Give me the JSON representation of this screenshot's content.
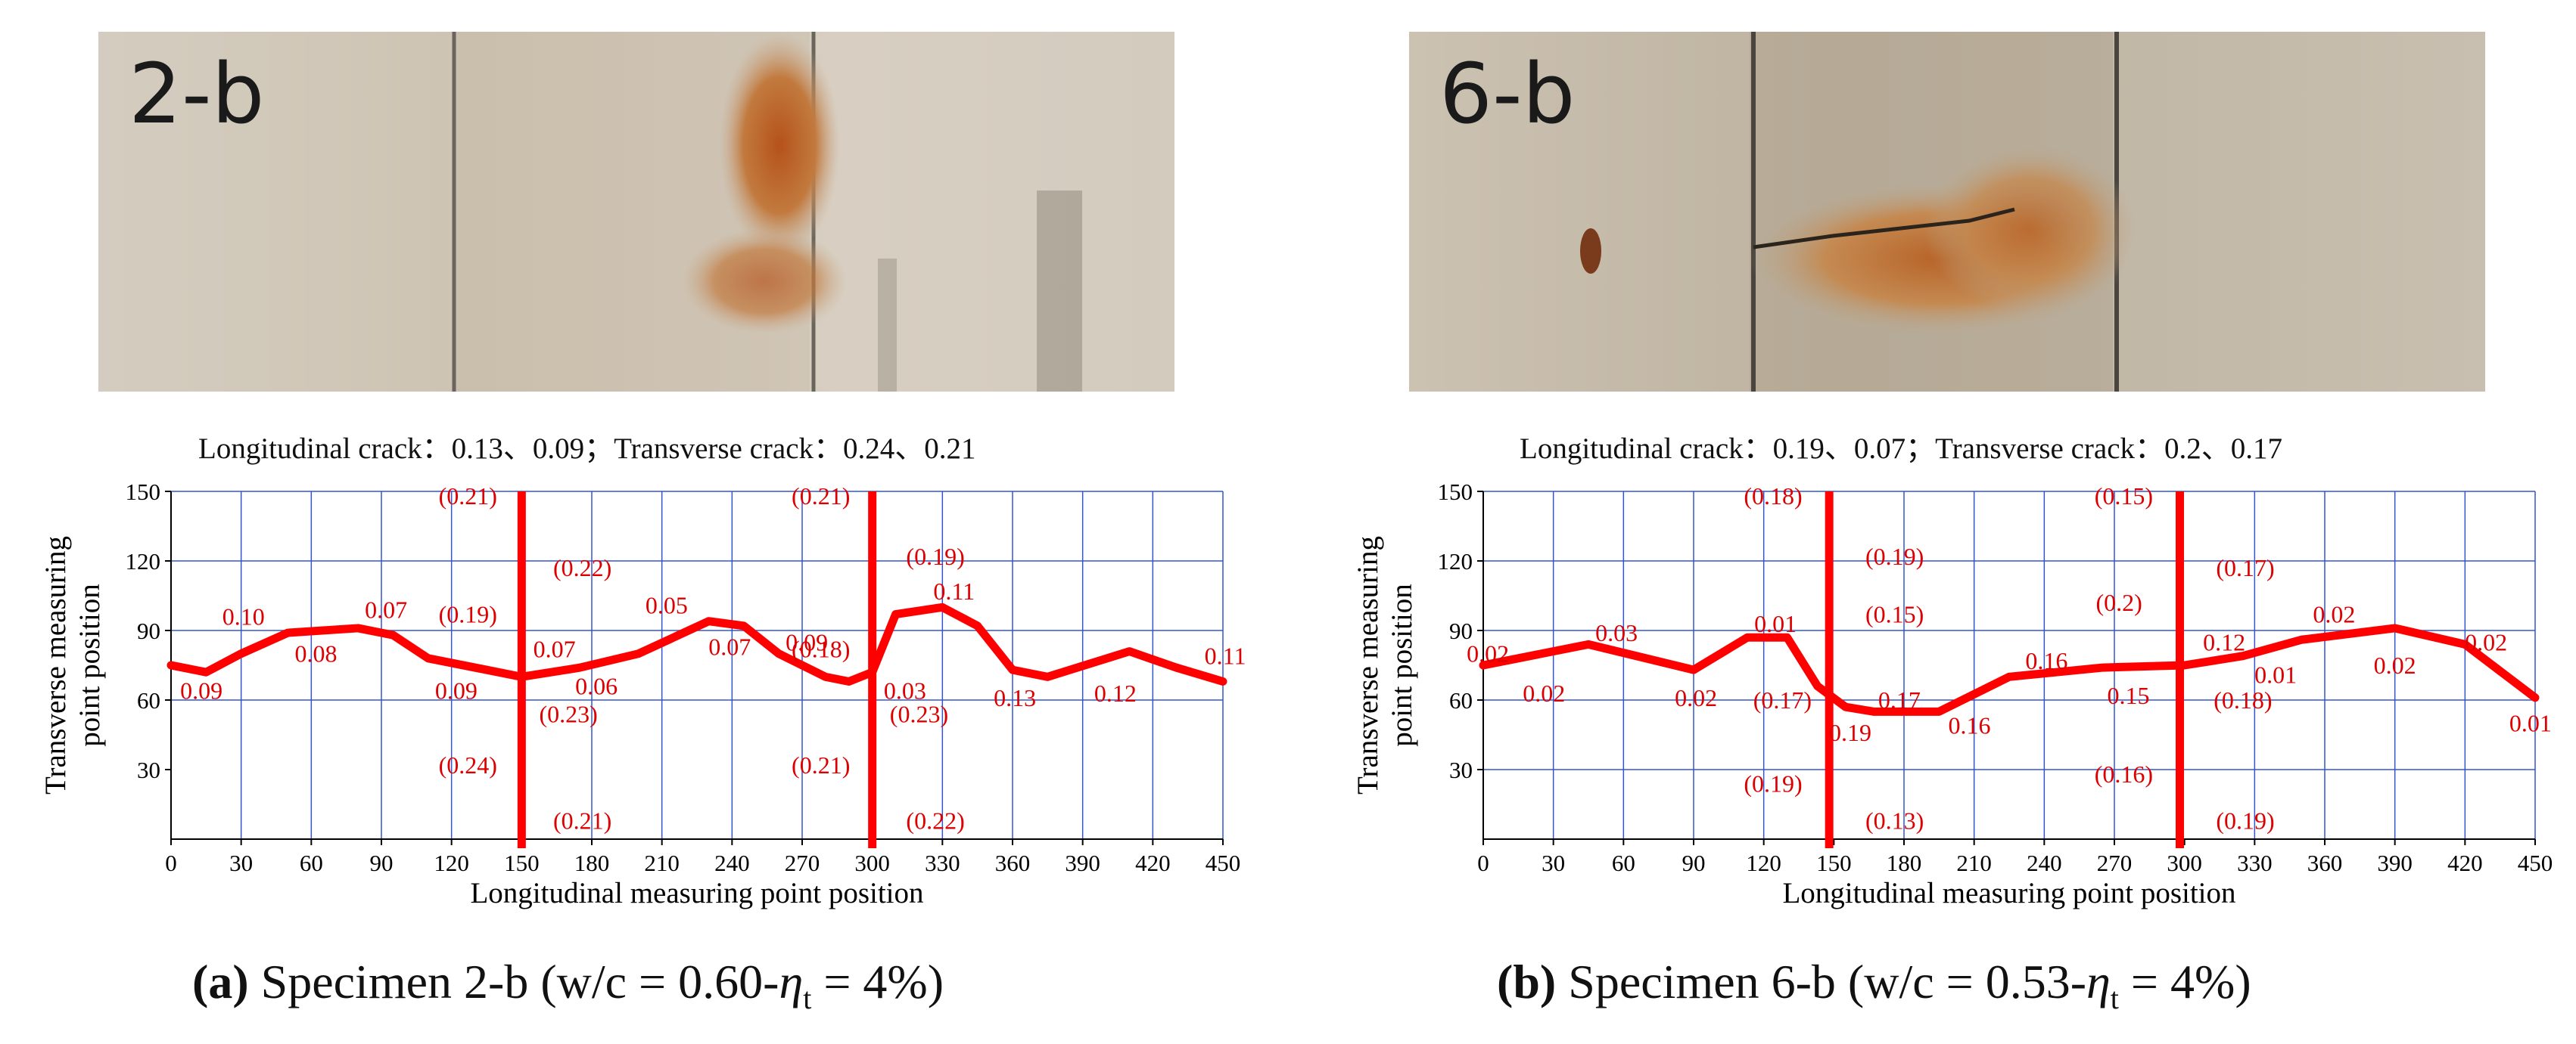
{
  "colors": {
    "series": "#ff0000",
    "grid": "#3355cc",
    "axis": "#000000",
    "label": "#dd0000"
  },
  "chart_data": [
    {
      "type": "line",
      "panel_letter": "a",
      "photo_label": "2-b",
      "crack_summary": "Longitudinal crack：0.13、0.09；Transverse crack：0.24、0.21",
      "caption_letter": "(a)",
      "caption_text": " Specimen 2-b (w/c = 0.60-",
      "caption_eta": "η",
      "caption_sub": "t",
      "caption_tail": " = 4%)",
      "xlabel": "Longitudinal measuring point position",
      "ylabel_line1": "Transverse measuring",
      "ylabel_line2": "point position",
      "xlim": [
        0,
        450
      ],
      "ylim": [
        0,
        150
      ],
      "xticks": [
        "0",
        "30",
        "60",
        "90",
        "120",
        "150",
        "180",
        "210",
        "240",
        "270",
        "300",
        "330",
        "360",
        "390",
        "420",
        "450"
      ],
      "yticks": [
        "30",
        "60",
        "90",
        "120",
        "150"
      ],
      "vertical_grid": [
        30,
        60,
        90,
        120,
        180,
        210,
        240,
        270,
        330,
        360,
        390,
        420,
        450
      ],
      "horizontal_grid": [
        60,
        90,
        120,
        150
      ],
      "crack_lines_x": [
        150,
        300
      ],
      "longitudinal_crack": {
        "x": [
          0,
          15,
          30,
          50,
          80,
          95,
          110,
          130,
          150,
          175,
          200,
          230,
          245,
          260,
          280,
          290,
          300,
          310,
          330,
          345,
          360,
          375,
          410,
          430,
          450
        ],
        "y": [
          75,
          72,
          80,
          89,
          91,
          88,
          78,
          74,
          70,
          74,
          80,
          94,
          92,
          80,
          70,
          68,
          72,
          97,
          100,
          92,
          73,
          70,
          81,
          74,
          68
        ]
      },
      "point_labels": [
        {
          "text": "0.09",
          "x": 13,
          "y": 64
        },
        {
          "text": "0.10",
          "x": 31,
          "y": 96
        },
        {
          "text": "0.08",
          "x": 62,
          "y": 80
        },
        {
          "text": "0.07",
          "x": 92,
          "y": 99
        },
        {
          "text": "0.09",
          "x": 122,
          "y": 64
        },
        {
          "text": "0.07",
          "x": 164,
          "y": 82
        },
        {
          "text": "0.06",
          "x": 182,
          "y": 66
        },
        {
          "text": "0.05",
          "x": 212,
          "y": 101
        },
        {
          "text": "0.07",
          "x": 239,
          "y": 83
        },
        {
          "text": "0.09",
          "x": 272,
          "y": 85
        },
        {
          "text": "0.03",
          "x": 314,
          "y": 64
        },
        {
          "text": "0.11",
          "x": 335,
          "y": 107
        },
        {
          "text": "0.13",
          "x": 361,
          "y": 61
        },
        {
          "text": "0.12",
          "x": 404,
          "y": 63
        },
        {
          "text": "0.11",
          "x": 451,
          "y": 79
        }
      ],
      "bracket_labels": [
        {
          "text": "(0.21)",
          "x": 127,
          "y": 148
        },
        {
          "text": "(0.22)",
          "x": 176,
          "y": 117
        },
        {
          "text": "(0.19)",
          "x": 127,
          "y": 97
        },
        {
          "text": "(0.23)",
          "x": 170,
          "y": 54
        },
        {
          "text": "(0.24)",
          "x": 127,
          "y": 32
        },
        {
          "text": "(0.21)",
          "x": 176,
          "y": 8
        },
        {
          "text": "(0.21)",
          "x": 278,
          "y": 148
        },
        {
          "text": "(0.19)",
          "x": 327,
          "y": 122
        },
        {
          "text": "(0.18)",
          "x": 278,
          "y": 82
        },
        {
          "text": "(0.23)",
          "x": 320,
          "y": 54
        },
        {
          "text": "(0.21)",
          "x": 278,
          "y": 32
        },
        {
          "text": "(0.22)",
          "x": 327,
          "y": 8
        }
      ]
    },
    {
      "type": "line",
      "panel_letter": "b",
      "photo_label": "6-b",
      "crack_summary": "Longitudinal crack：0.19、0.07；Transverse crack：0.2、0.17",
      "caption_letter": "(b)",
      "caption_text": " Specimen 6-b (w/c = 0.53-",
      "caption_eta": "η",
      "caption_sub": "t",
      "caption_tail": " = 4%)",
      "xlabel": "Longitudinal measuring point position",
      "ylabel_line1": "Transverse measuring",
      "ylabel_line2": "point position",
      "xlim": [
        0,
        450
      ],
      "ylim": [
        0,
        150
      ],
      "xticks": [
        "0",
        "30",
        "60",
        "90",
        "120",
        "150",
        "180",
        "210",
        "240",
        "270",
        "300",
        "330",
        "360",
        "390",
        "420",
        "450"
      ],
      "yticks": [
        "30",
        "60",
        "90",
        "120",
        "150"
      ],
      "vertical_grid": [
        30,
        60,
        90,
        120,
        180,
        210,
        240,
        270,
        330,
        360,
        390,
        420,
        450
      ],
      "horizontal_grid": [
        30,
        60,
        90,
        120,
        150
      ],
      "crack_lines_x": [
        148,
        298
      ],
      "longitudinal_crack": {
        "x": [
          0,
          45,
          90,
          113,
          130,
          143,
          155,
          167,
          195,
          225,
          265,
          300,
          325,
          350,
          390,
          420,
          450
        ],
        "y": [
          75,
          84,
          73,
          87,
          87,
          66,
          57,
          55,
          55,
          70,
          74,
          75,
          79,
          86,
          91,
          84,
          61
        ]
      },
      "point_labels": [
        {
          "text": "0.02",
          "x": 2,
          "y": 80
        },
        {
          "text": "0.03",
          "x": 57,
          "y": 89
        },
        {
          "text": "0.02",
          "x": 26,
          "y": 63
        },
        {
          "text": "0.02",
          "x": 91,
          "y": 61
        },
        {
          "text": "0.01",
          "x": 125,
          "y": 93
        },
        {
          "text": "0.19",
          "x": 157,
          "y": 46
        },
        {
          "text": "0.17",
          "x": 178,
          "y": 60
        },
        {
          "text": "0.16",
          "x": 208,
          "y": 49
        },
        {
          "text": "0.16",
          "x": 241,
          "y": 77
        },
        {
          "text": "0.15",
          "x": 276,
          "y": 62
        },
        {
          "text": "0.12",
          "x": 317,
          "y": 85
        },
        {
          "text": "0.01",
          "x": 339,
          "y": 71
        },
        {
          "text": "0.02",
          "x": 364,
          "y": 97
        },
        {
          "text": "0.02",
          "x": 390,
          "y": 75
        },
        {
          "text": "0.02",
          "x": 429,
          "y": 85
        },
        {
          "text": "0.01",
          "x": 448,
          "y": 50
        }
      ],
      "bracket_labels": [
        {
          "text": "(0.18)",
          "x": 124,
          "y": 148
        },
        {
          "text": "(0.19)",
          "x": 176,
          "y": 122
        },
        {
          "text": "(0.15)",
          "x": 176,
          "y": 97
        },
        {
          "text": "(0.17)",
          "x": 128,
          "y": 60
        },
        {
          "text": "(0.19)",
          "x": 124,
          "y": 24
        },
        {
          "text": "(0.13)",
          "x": 176,
          "y": 8
        },
        {
          "text": "(0.15)",
          "x": 274,
          "y": 148
        },
        {
          "text": "(0.17)",
          "x": 326,
          "y": 117
        },
        {
          "text": "(0.2)",
          "x": 272,
          "y": 102
        },
        {
          "text": "(0.18)",
          "x": 325,
          "y": 60
        },
        {
          "text": "(0.16)",
          "x": 274,
          "y": 28
        },
        {
          "text": "(0.19)",
          "x": 326,
          "y": 8
        }
      ]
    }
  ]
}
